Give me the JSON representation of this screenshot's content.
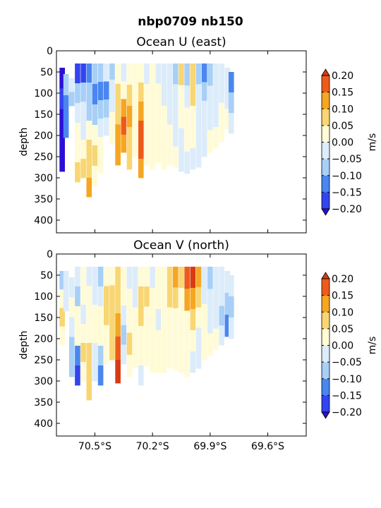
{
  "figure": {
    "suptitle": "nbp0709 nb150"
  },
  "colors": {
    "levels": [
      -0.2,
      -0.15,
      -0.1,
      -0.05,
      0.0,
      0.05,
      0.1,
      0.15,
      0.2
    ],
    "fills": [
      "#3344ee",
      "#4a86f0",
      "#a7cff7",
      "#dcecfa",
      "#fffbd6",
      "#f8d673",
      "#f5a623",
      "#ec5b1c"
    ],
    "under": "#2b0fd6",
    "over": "#d93a14"
  },
  "chart_data": [
    {
      "type": "heatmap",
      "name": "u",
      "title": "Ocean U (east)",
      "xlabel": "",
      "ylabel": "depth",
      "xlim": [
        -70.7,
        -69.4
      ],
      "ylim": [
        430,
        0
      ],
      "x_ticks": [
        -70.5,
        -70.2,
        -69.9,
        -69.6
      ],
      "x_tick_labels": [],
      "y_ticks": [
        0,
        50,
        100,
        150,
        200,
        250,
        300,
        350,
        400
      ],
      "colorbar": {
        "label": "m/s",
        "ticks": [
          0.2,
          0.15,
          0.1,
          0.05,
          0.0,
          -0.05,
          -0.1,
          -0.15,
          -0.2
        ],
        "tick_labels": [
          "0.20",
          "0.15",
          "0.10",
          "0.05",
          "0.00",
          "−0.05",
          "−0.10",
          "−0.15",
          "−0.20"
        ],
        "extend": "both"
      },
      "profiles": [
        {
          "lat": -70.67,
          "depth_top": 40,
          "depth_bottom": 285,
          "values": [
            -0.21,
            -0.16,
            -0.22,
            -0.22,
            -0.21
          ]
        },
        {
          "lat": -70.65,
          "depth_top": 55,
          "depth_bottom": 205,
          "values": [
            -0.08,
            -0.13,
            -0.11
          ]
        },
        {
          "lat": -70.62,
          "depth_top": 65,
          "depth_bottom": 130,
          "values": [
            -0.04,
            -0.07
          ]
        },
        {
          "lat": -70.59,
          "depth_top": 30,
          "depth_bottom": 310,
          "values": [
            -0.17,
            -0.06,
            -0.05,
            0.02,
            0.03,
            0.06
          ]
        },
        {
          "lat": -70.56,
          "depth_top": 30,
          "depth_bottom": 300,
          "values": [
            -0.16,
            -0.09,
            -0.04,
            -0.03,
            0.04,
            0.07
          ]
        },
        {
          "lat": -70.53,
          "depth_top": 30,
          "depth_bottom": 345,
          "values": [
            -0.12,
            -0.07,
            -0.08,
            0.01,
            0.06,
            0.08,
            0.12
          ]
        },
        {
          "lat": -70.5,
          "depth_top": 30,
          "depth_bottom": 320,
          "values": [
            -0.09,
            -0.11,
            -0.06,
            0.02,
            0.05,
            0.04
          ]
        },
        {
          "lat": -70.47,
          "depth_top": 30,
          "depth_bottom": 290,
          "values": [
            -0.06,
            -0.12,
            -0.09,
            -0.02,
            0.03,
            0.01
          ]
        },
        {
          "lat": -70.44,
          "depth_top": 30,
          "depth_bottom": 200,
          "values": [
            -0.04,
            -0.13,
            -0.07,
            -0.02
          ]
        },
        {
          "lat": -70.41,
          "depth_top": 30,
          "depth_bottom": 220,
          "values": [
            -0.07,
            -0.05,
            -0.03,
            0.02,
            0.04
          ]
        },
        {
          "lat": -70.38,
          "depth_top": 30,
          "depth_bottom": 270,
          "values": [
            0.03,
            0.06,
            0.09,
            0.12,
            0.14
          ]
        },
        {
          "lat": -70.35,
          "depth_top": 30,
          "depth_bottom": 240,
          "values": [
            -0.03,
            0.04,
            0.11,
            0.16,
            0.13
          ]
        },
        {
          "lat": -70.32,
          "depth_top": 30,
          "depth_bottom": 280,
          "values": [
            0.02,
            0.07,
            0.1,
            0.08,
            0.06
          ]
        },
        {
          "lat": -70.29,
          "depth_top": 30,
          "depth_bottom": 250,
          "values": [
            0.01,
            0.03,
            0.02,
            0.04,
            0.02
          ]
        },
        {
          "lat": -70.26,
          "depth_top": 30,
          "depth_bottom": 300,
          "values": [
            0.04,
            0.08,
            0.12,
            0.15,
            0.17,
            0.11
          ]
        },
        {
          "lat": -70.23,
          "depth_top": 30,
          "depth_bottom": 270,
          "values": [
            -0.03,
            0.01,
            0.02,
            0.03,
            0.01
          ]
        },
        {
          "lat": -70.2,
          "depth_top": 30,
          "depth_bottom": 280,
          "values": [
            0.02,
            0.03,
            0.02,
            0.01,
            0.02
          ]
        },
        {
          "lat": -70.17,
          "depth_top": 30,
          "depth_bottom": 265,
          "values": [
            -0.04,
            0.01,
            0.03,
            0.02,
            0.01
          ]
        },
        {
          "lat": -70.14,
          "depth_top": 30,
          "depth_bottom": 280,
          "values": [
            -0.03,
            -0.02,
            0.01,
            0.02,
            0.01
          ]
        },
        {
          "lat": -70.11,
          "depth_top": 30,
          "depth_bottom": 270,
          "values": [
            -0.05,
            -0.03,
            -0.02,
            0.01,
            0.02
          ]
        },
        {
          "lat": -70.08,
          "depth_top": 30,
          "depth_bottom": 275,
          "values": [
            -0.07,
            -0.04,
            -0.02,
            -0.01,
            0.01
          ]
        },
        {
          "lat": -70.05,
          "depth_top": 30,
          "depth_bottom": 285,
          "values": [
            0.06,
            0.04,
            0.02,
            -0.02,
            -0.03
          ]
        },
        {
          "lat": -70.02,
          "depth_top": 30,
          "depth_bottom": 290,
          "values": [
            -0.06,
            -0.04,
            0.02,
            0.03,
            -0.02
          ]
        },
        {
          "lat": -69.99,
          "depth_top": 30,
          "depth_bottom": 280,
          "values": [
            0.07,
            0.09,
            0.04,
            0.02,
            -0.03
          ]
        },
        {
          "lat": -69.96,
          "depth_top": 30,
          "depth_bottom": 275,
          "values": [
            -0.08,
            -0.04,
            -0.03,
            -0.02,
            -0.01
          ]
        },
        {
          "lat": -69.93,
          "depth_top": 30,
          "depth_bottom": 250,
          "values": [
            -0.13,
            -0.07,
            -0.04,
            -0.03,
            -0.02
          ]
        },
        {
          "lat": -69.9,
          "depth_top": 30,
          "depth_bottom": 240,
          "values": [
            -0.06,
            -0.04,
            -0.02,
            0.01
          ]
        },
        {
          "lat": -69.87,
          "depth_top": 30,
          "depth_bottom": 230,
          "values": [
            -0.04,
            -0.03,
            -0.02,
            0.02
          ]
        },
        {
          "lat": -69.84,
          "depth_top": 30,
          "depth_bottom": 215,
          "values": [
            -0.03,
            -0.02,
            0.02,
            0.01
          ]
        },
        {
          "lat": -69.81,
          "depth_top": 40,
          "depth_bottom": 185,
          "values": [
            -0.04,
            -0.02,
            0.03
          ]
        },
        {
          "lat": -69.79,
          "depth_top": 50,
          "depth_bottom": 195,
          "values": [
            -0.13,
            -0.07,
            -0.04
          ]
        }
      ]
    },
    {
      "type": "heatmap",
      "name": "v",
      "title": "Ocean V (north)",
      "xlabel": "",
      "ylabel": "depth",
      "xlim": [
        -70.7,
        -69.4
      ],
      "ylim": [
        430,
        0
      ],
      "x_ticks": [
        -70.5,
        -70.2,
        -69.9,
        -69.6
      ],
      "x_tick_labels": [
        "70.5°S",
        "70.2°S",
        "69.9°S",
        "69.6°S"
      ],
      "y_ticks": [
        0,
        50,
        100,
        150,
        200,
        250,
        300,
        350,
        400
      ],
      "colorbar": {
        "label": "m/s",
        "ticks": [
          0.2,
          0.15,
          0.1,
          0.05,
          0.0,
          -0.05,
          -0.1,
          -0.15,
          -0.2
        ],
        "tick_labels": [
          "0.20",
          "0.15",
          "0.10",
          "0.05",
          "0.00",
          "−0.05",
          "−0.10",
          "−0.15",
          "−0.20"
        ],
        "extend": "both"
      },
      "profiles": [
        {
          "lat": -70.67,
          "depth_top": 40,
          "depth_bottom": 215,
          "values": [
            -0.06,
            0.01,
            0.07,
            0.03
          ]
        },
        {
          "lat": -70.65,
          "depth_top": 40,
          "depth_bottom": 135,
          "values": [
            -0.04,
            -0.02
          ]
        },
        {
          "lat": -70.62,
          "depth_top": 55,
          "depth_bottom": 290,
          "values": [
            -0.03,
            0.02,
            -0.05,
            -0.07,
            -0.08
          ]
        },
        {
          "lat": -70.59,
          "depth_top": 30,
          "depth_bottom": 310,
          "values": [
            -0.04,
            -0.06,
            0.02,
            0.01,
            -0.12,
            -0.16
          ]
        },
        {
          "lat": -70.56,
          "depth_top": 30,
          "depth_bottom": 300,
          "values": [
            0.02,
            0.04,
            -0.01,
            0.03,
            0.05,
            0.03
          ]
        },
        {
          "lat": -70.53,
          "depth_top": 30,
          "depth_bottom": 345,
          "values": [
            -0.03,
            0.02,
            0.04,
            0.03,
            0.06,
            0.07,
            0.09
          ]
        },
        {
          "lat": -70.5,
          "depth_top": 30,
          "depth_bottom": 300,
          "values": [
            -0.05,
            -0.03,
            0.01,
            0.02,
            -0.02,
            -0.04
          ]
        },
        {
          "lat": -70.47,
          "depth_top": 30,
          "depth_bottom": 310,
          "values": [
            -0.06,
            -0.04,
            0.02,
            0.03,
            -0.06,
            -0.13
          ]
        },
        {
          "lat": -70.44,
          "depth_top": 30,
          "depth_bottom": 260,
          "values": [
            0.04,
            0.08,
            0.06,
            0.03,
            0.02
          ]
        },
        {
          "lat": -70.41,
          "depth_top": 30,
          "depth_bottom": 250,
          "values": [
            0.01,
            0.06,
            0.09,
            0.07,
            0.05
          ]
        },
        {
          "lat": -70.38,
          "depth_top": 30,
          "depth_bottom": 305,
          "values": [
            0.05,
            0.08,
            0.12,
            0.16,
            0.22
          ]
        },
        {
          "lat": -70.35,
          "depth_top": 30,
          "depth_bottom": 260,
          "values": [
            0.03,
            0.02,
            -0.03,
            -0.06,
            -0.04
          ]
        },
        {
          "lat": -70.32,
          "depth_top": 30,
          "depth_bottom": 290,
          "values": [
            -0.04,
            0.01,
            0.03,
            0.06,
            0.04
          ]
        },
        {
          "lat": -70.29,
          "depth_top": 30,
          "depth_bottom": 270,
          "values": [
            -0.05,
            -0.03,
            0.02,
            0.01,
            0.03
          ]
        },
        {
          "lat": -70.26,
          "depth_top": 30,
          "depth_bottom": 310,
          "values": [
            0.02,
            0.07,
            0.08,
            0.03,
            0.01,
            -0.02
          ]
        },
        {
          "lat": -70.23,
          "depth_top": 30,
          "depth_bottom": 265,
          "values": [
            0.03,
            0.06,
            0.04,
            0.02,
            0.01
          ]
        },
        {
          "lat": -70.2,
          "depth_top": 30,
          "depth_bottom": 280,
          "values": [
            -0.03,
            0.01,
            0.02,
            0.01,
            0.02
          ]
        },
        {
          "lat": -70.17,
          "depth_top": 30,
          "depth_bottom": 280,
          "values": [
            0.02,
            0.01,
            -0.02,
            0.01,
            0.02
          ]
        },
        {
          "lat": -70.14,
          "depth_top": 30,
          "depth_bottom": 280,
          "values": [
            0.04,
            0.02,
            0.01,
            0.01,
            0.02
          ]
        },
        {
          "lat": -70.11,
          "depth_top": 30,
          "depth_bottom": 270,
          "values": [
            0.09,
            0.06,
            0.03,
            0.01,
            0.02
          ]
        },
        {
          "lat": -70.08,
          "depth_top": 30,
          "depth_bottom": 275,
          "values": [
            0.13,
            0.08,
            0.03,
            0.02,
            0.01
          ]
        },
        {
          "lat": -70.05,
          "depth_top": 30,
          "depth_bottom": 280,
          "values": [
            0.07,
            0.04,
            0.02,
            0.01,
            0.02
          ]
        },
        {
          "lat": -70.02,
          "depth_top": 30,
          "depth_bottom": 290,
          "values": [
            0.18,
            0.1,
            0.03,
            0.02,
            0.01
          ]
        },
        {
          "lat": -69.99,
          "depth_top": 30,
          "depth_bottom": 280,
          "values": [
            0.22,
            0.14,
            0.05,
            0.02,
            -0.02
          ]
        },
        {
          "lat": -69.96,
          "depth_top": 30,
          "depth_bottom": 270,
          "values": [
            0.12,
            0.06,
            0.02,
            -0.03,
            -0.02
          ]
        },
        {
          "lat": -69.93,
          "depth_top": 30,
          "depth_bottom": 250,
          "values": [
            -0.03,
            -0.04,
            0.01,
            0.02,
            0.01
          ]
        },
        {
          "lat": -69.9,
          "depth_top": 30,
          "depth_bottom": 240,
          "values": [
            -0.06,
            -0.04,
            -0.02,
            0.01
          ]
        },
        {
          "lat": -69.87,
          "depth_top": 30,
          "depth_bottom": 225,
          "values": [
            -0.04,
            -0.02,
            -0.03,
            0.01
          ]
        },
        {
          "lat": -69.84,
          "depth_top": 30,
          "depth_bottom": 215,
          "values": [
            -0.02,
            -0.04,
            -0.07,
            -0.03
          ]
        },
        {
          "lat": -69.81,
          "depth_top": 40,
          "depth_bottom": 195,
          "values": [
            -0.03,
            -0.06,
            -0.12
          ]
        },
        {
          "lat": -69.79,
          "depth_top": 50,
          "depth_bottom": 200,
          "values": [
            -0.04,
            -0.07,
            -0.05
          ]
        }
      ]
    }
  ]
}
